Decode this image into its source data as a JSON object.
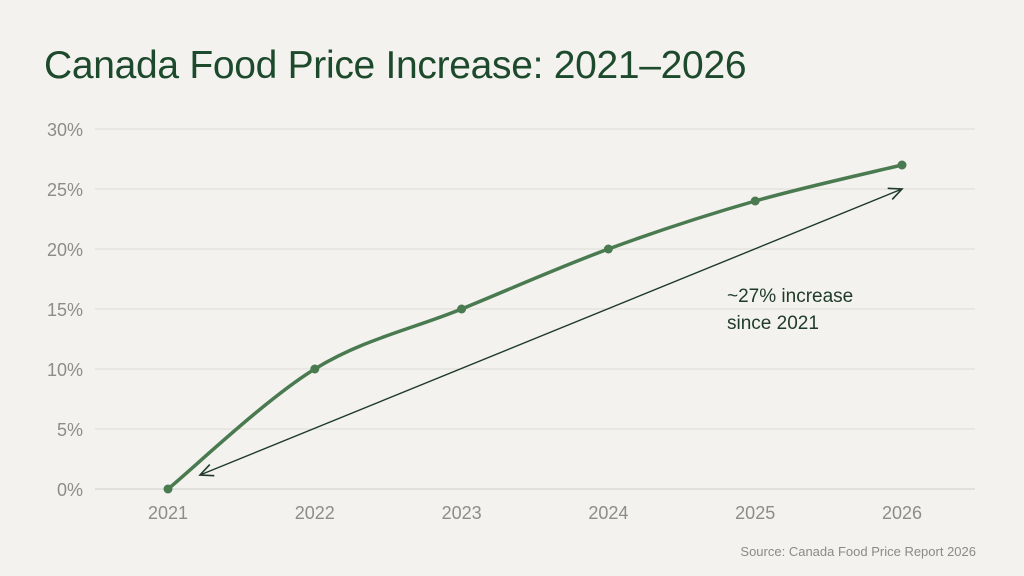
{
  "chart_data": {
    "type": "line",
    "title": "Canada Food Price Increase: 2021–2026",
    "xlabel": "",
    "ylabel": "",
    "categories": [
      "2021",
      "2022",
      "2023",
      "2024",
      "2025",
      "2026"
    ],
    "series": [
      {
        "values": [
          0,
          10,
          15,
          20,
          24,
          27
        ]
      }
    ],
    "ylim": [
      0,
      30
    ],
    "yticks": [
      0,
      5,
      10,
      15,
      20,
      25,
      30
    ],
    "ytick_labels": [
      "0%",
      "5%",
      "10%",
      "15%",
      "20%",
      "25%",
      "30%"
    ],
    "grid": "horizontal",
    "legend": "none",
    "annotation": {
      "lines": [
        "~27% increase",
        "since 2021"
      ],
      "arrow_from": [
        "2021",
        1
      ],
      "arrow_to": [
        "2026",
        25
      ]
    },
    "source": "Source: Canada Food Price Report 2026",
    "colors": {
      "line": "#4a7a50",
      "arrow": "#1f3a28",
      "grid": "#dcdcd6",
      "background": "#f3f2ee",
      "title": "#1d4a2c"
    }
  }
}
